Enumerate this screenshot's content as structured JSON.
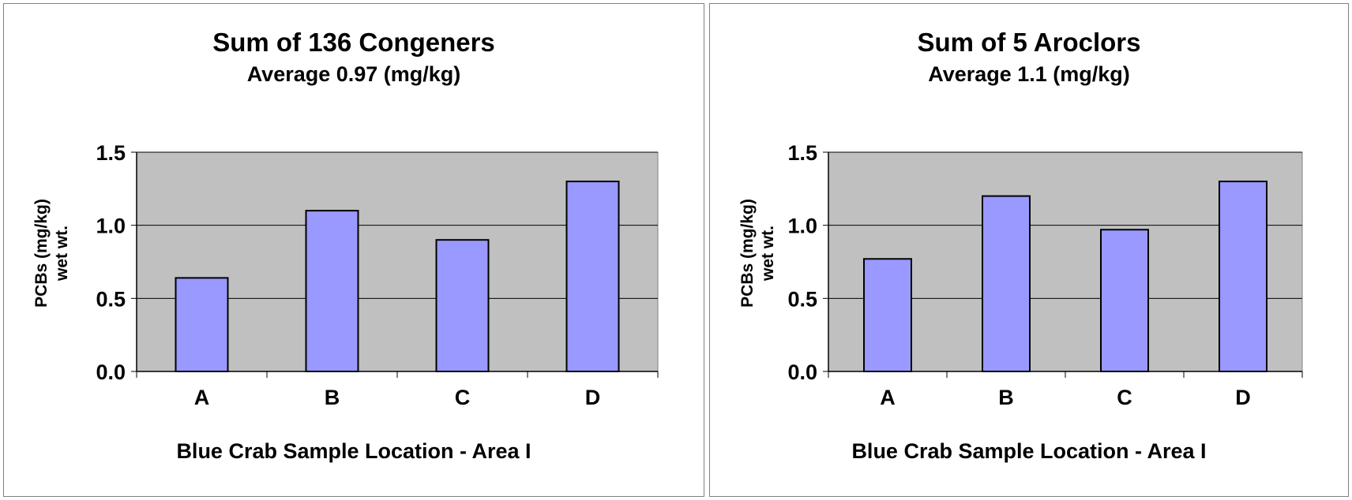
{
  "chart_data": [
    {
      "type": "bar",
      "title": "Sum of 136 Congeners",
      "subtitle": "Average 0.97 (mg/kg)",
      "xlabel": "Blue Crab Sample Location - Area I",
      "ylabel_line1": "PCBs (mg/kg)",
      "ylabel_line2": "wet wt.",
      "categories": [
        "A",
        "B",
        "C",
        "D"
      ],
      "values": [
        0.64,
        1.1,
        0.9,
        1.3
      ],
      "yticks": [
        "0.0",
        "0.5",
        "1.0",
        "1.5"
      ],
      "ylim": [
        0,
        1.5
      ],
      "grid": true,
      "legend": "none",
      "bar_color": "#9999ff",
      "plot_bg": "#c0c0c0"
    },
    {
      "type": "bar",
      "title": "Sum of 5 Aroclors",
      "subtitle": "Average 1.1 (mg/kg)",
      "xlabel": "Blue Crab Sample Location - Area I",
      "ylabel_line1": "PCBs (mg/kg)",
      "ylabel_line2": "wet wt.",
      "categories": [
        "A",
        "B",
        "C",
        "D"
      ],
      "values": [
        0.77,
        1.2,
        0.97,
        1.3
      ],
      "yticks": [
        "0.0",
        "0.5",
        "1.0",
        "1.5"
      ],
      "ylim": [
        0,
        1.5
      ],
      "grid": true,
      "legend": "none",
      "bar_color": "#9999ff",
      "plot_bg": "#c0c0c0"
    }
  ]
}
